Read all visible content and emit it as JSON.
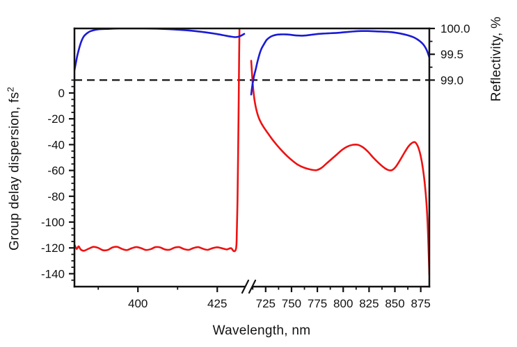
{
  "figure": {
    "xlabel": "Wavelength, nm",
    "ylabel_left": "Group delay dispersion, fs",
    "ylabel_left_sup": "2",
    "ylabel_right": "Reflectivity, %"
  },
  "colors": {
    "gdd": "#ee1111",
    "reflectivity": "#1a1ad6",
    "axis": "#111111",
    "dashed": "#111111",
    "background": "#ffffff"
  },
  "chart_data": {
    "type": "line",
    "title": "",
    "xlabel": "Wavelength, nm",
    "ylabel_left": "Group delay dispersion, fs^2",
    "ylabel_right": "Reflectivity, %",
    "grid": false,
    "legend": false,
    "x_axis_break": {
      "left_range": [
        380,
        433.5
      ],
      "right_range": [
        711,
        883.3
      ]
    },
    "x_ticks_left_major": [
      400,
      425
    ],
    "x_ticks_left_minor": [
      387.5,
      412.5
    ],
    "x_ticks_right_major": [
      725,
      750,
      775,
      800,
      825,
      850,
      875
    ],
    "x_ticks_right_minor": [
      712.5,
      737.5,
      762.5,
      787.5,
      812.5,
      837.5,
      862.5
    ],
    "y_left": {
      "label": "Group delay dispersion, fs^2",
      "range": [
        -150,
        50
      ],
      "major_ticks": [
        0,
        -20,
        -40,
        -60,
        -80,
        -100,
        -120,
        -140
      ],
      "minor_ticks": [
        10,
        5,
        -5,
        -10,
        -15,
        -25,
        -30,
        -35,
        -45,
        -50,
        -55,
        -65,
        -70,
        -75,
        -85,
        -90,
        -95,
        -105,
        -110,
        -115,
        -125,
        -130,
        -135,
        -145
      ]
    },
    "y_right": {
      "label": "Reflectivity, %",
      "range": [
        95,
        100
      ],
      "major_ticks": [
        100.0,
        99.5,
        99.0
      ],
      "minor_ticks": [
        99.75,
        99.25
      ]
    },
    "dashed_line_reflectivity": 99.0,
    "series": [
      {
        "name": "GDD left segment",
        "axis": "left",
        "segment": "left",
        "color_key": "gdd",
        "points": [
          [
            380,
            -117.5
          ],
          [
            380.7,
            -120.8
          ],
          [
            381.3,
            -118.8
          ],
          [
            382,
            -121.3
          ],
          [
            383,
            -122.2
          ],
          [
            384.5,
            -120.6
          ],
          [
            386,
            -119.2
          ],
          [
            387.5,
            -120
          ],
          [
            389,
            -121.8
          ],
          [
            390.5,
            -121.6
          ],
          [
            392,
            -119.6
          ],
          [
            393.5,
            -119.2
          ],
          [
            395,
            -120.8
          ],
          [
            396.5,
            -121.7
          ],
          [
            398,
            -120.3
          ],
          [
            399.5,
            -119.3
          ],
          [
            401,
            -120.2
          ],
          [
            402.5,
            -121.6
          ],
          [
            404,
            -121
          ],
          [
            405.5,
            -119.4
          ],
          [
            407,
            -119.6
          ],
          [
            408.5,
            -121.2
          ],
          [
            410,
            -121.4
          ],
          [
            411.5,
            -119.8
          ],
          [
            413,
            -119.4
          ],
          [
            414.5,
            -120.9
          ],
          [
            416,
            -121.5
          ],
          [
            417.5,
            -120.1
          ],
          [
            419,
            -119.4
          ],
          [
            420.5,
            -120.7
          ],
          [
            422,
            -121.5
          ],
          [
            423.5,
            -120.2
          ],
          [
            425,
            -119.5
          ],
          [
            426.5,
            -120.3
          ],
          [
            428,
            -121.2
          ],
          [
            429.3,
            -120.2
          ],
          [
            430.2,
            -122.5
          ],
          [
            430.8,
            -121.5
          ],
          [
            431.1,
            -115
          ],
          [
            431.4,
            -80
          ],
          [
            431.7,
            -20
          ],
          [
            431.9,
            30
          ],
          [
            432,
            50
          ]
        ]
      },
      {
        "name": "GDD right segment",
        "axis": "left",
        "segment": "right",
        "color_key": "gdd",
        "points": [
          [
            711,
            25
          ],
          [
            711.8,
            15
          ],
          [
            712.5,
            7
          ],
          [
            713.5,
            -1
          ],
          [
            714.5,
            -7
          ],
          [
            716,
            -13
          ],
          [
            718,
            -18.5
          ],
          [
            720.5,
            -23
          ],
          [
            723.5,
            -27
          ],
          [
            727,
            -31
          ],
          [
            731,
            -35.5
          ],
          [
            736,
            -40.5
          ],
          [
            741,
            -45
          ],
          [
            746,
            -49
          ],
          [
            751,
            -52.5
          ],
          [
            756,
            -55.5
          ],
          [
            762,
            -57.8
          ],
          [
            768,
            -59.2
          ],
          [
            774,
            -59.8
          ],
          [
            779,
            -58
          ],
          [
            784,
            -54.5
          ],
          [
            789,
            -51
          ],
          [
            794,
            -47.5
          ],
          [
            799,
            -44
          ],
          [
            804,
            -41.5
          ],
          [
            809,
            -40.2
          ],
          [
            814,
            -40.1
          ],
          [
            819,
            -42
          ],
          [
            824,
            -45.5
          ],
          [
            829,
            -50
          ],
          [
            834,
            -54
          ],
          [
            839,
            -57.5
          ],
          [
            843,
            -59.5
          ],
          [
            847,
            -59.8
          ],
          [
            851,
            -57
          ],
          [
            855,
            -52
          ],
          [
            859,
            -46.5
          ],
          [
            863,
            -41.5
          ],
          [
            866,
            -39
          ],
          [
            869,
            -38
          ],
          [
            871,
            -39.5
          ],
          [
            873,
            -43
          ],
          [
            875,
            -49
          ],
          [
            877,
            -58
          ],
          [
            879,
            -71
          ],
          [
            880.5,
            -85
          ],
          [
            881.7,
            -102
          ],
          [
            882.5,
            -120
          ],
          [
            883.3,
            -141
          ]
        ]
      },
      {
        "name": "Reflectivity left segment",
        "axis": "right",
        "segment": "left",
        "color_key": "reflectivity",
        "points": [
          [
            380,
            99.19
          ],
          [
            380.5,
            99.35
          ],
          [
            381,
            99.5
          ],
          [
            382,
            99.72
          ],
          [
            383,
            99.85
          ],
          [
            384.5,
            99.93
          ],
          [
            386,
            99.965
          ],
          [
            388,
            99.985
          ],
          [
            390,
            99.99
          ],
          [
            394,
            100
          ],
          [
            398,
            100
          ],
          [
            402,
            100
          ],
          [
            406,
            99.995
          ],
          [
            410,
            99.985
          ],
          [
            414,
            99.97
          ],
          [
            417,
            99.955
          ],
          [
            420,
            99.935
          ],
          [
            423,
            99.91
          ],
          [
            425.5,
            99.885
          ],
          [
            427.5,
            99.862
          ],
          [
            429.5,
            99.84
          ],
          [
            430.7,
            99.832
          ],
          [
            431.7,
            99.84
          ],
          [
            432.5,
            99.86
          ],
          [
            433.2,
            99.885
          ],
          [
            433.5,
            99.895
          ]
        ]
      },
      {
        "name": "Reflectivity right segment",
        "axis": "right",
        "segment": "right",
        "color_key": "reflectivity",
        "points": [
          [
            711,
            98.72
          ],
          [
            712,
            98.88
          ],
          [
            713,
            99.0
          ],
          [
            714,
            99.1
          ],
          [
            715.5,
            99.22
          ],
          [
            717,
            99.35
          ],
          [
            719,
            99.5
          ],
          [
            721,
            99.61
          ],
          [
            723.5,
            99.7
          ],
          [
            726,
            99.78
          ],
          [
            729,
            99.83
          ],
          [
            732,
            99.86
          ],
          [
            736,
            99.88
          ],
          [
            740,
            99.885
          ],
          [
            744,
            99.885
          ],
          [
            748,
            99.88
          ],
          [
            752,
            99.87
          ],
          [
            756,
            99.863
          ],
          [
            760,
            99.86
          ],
          [
            764,
            99.865
          ],
          [
            768,
            99.875
          ],
          [
            772,
            99.885
          ],
          [
            776,
            99.895
          ],
          [
            780,
            99.9
          ],
          [
            785,
            99.905
          ],
          [
            790,
            99.91
          ],
          [
            795,
            99.915
          ],
          [
            800,
            99.925
          ],
          [
            806,
            99.935
          ],
          [
            812,
            99.945
          ],
          [
            818,
            99.95
          ],
          [
            824,
            99.95
          ],
          [
            830,
            99.945
          ],
          [
            836,
            99.94
          ],
          [
            842,
            99.935
          ],
          [
            848,
            99.925
          ],
          [
            853,
            99.91
          ],
          [
            858,
            99.89
          ],
          [
            862,
            99.87
          ],
          [
            866,
            99.845
          ],
          [
            869,
            99.82
          ],
          [
            872,
            99.785
          ],
          [
            875,
            99.74
          ],
          [
            877.5,
            99.69
          ],
          [
            879.5,
            99.63
          ],
          [
            881,
            99.57
          ],
          [
            882.3,
            99.5
          ],
          [
            883.3,
            99.44
          ]
        ]
      }
    ]
  }
}
